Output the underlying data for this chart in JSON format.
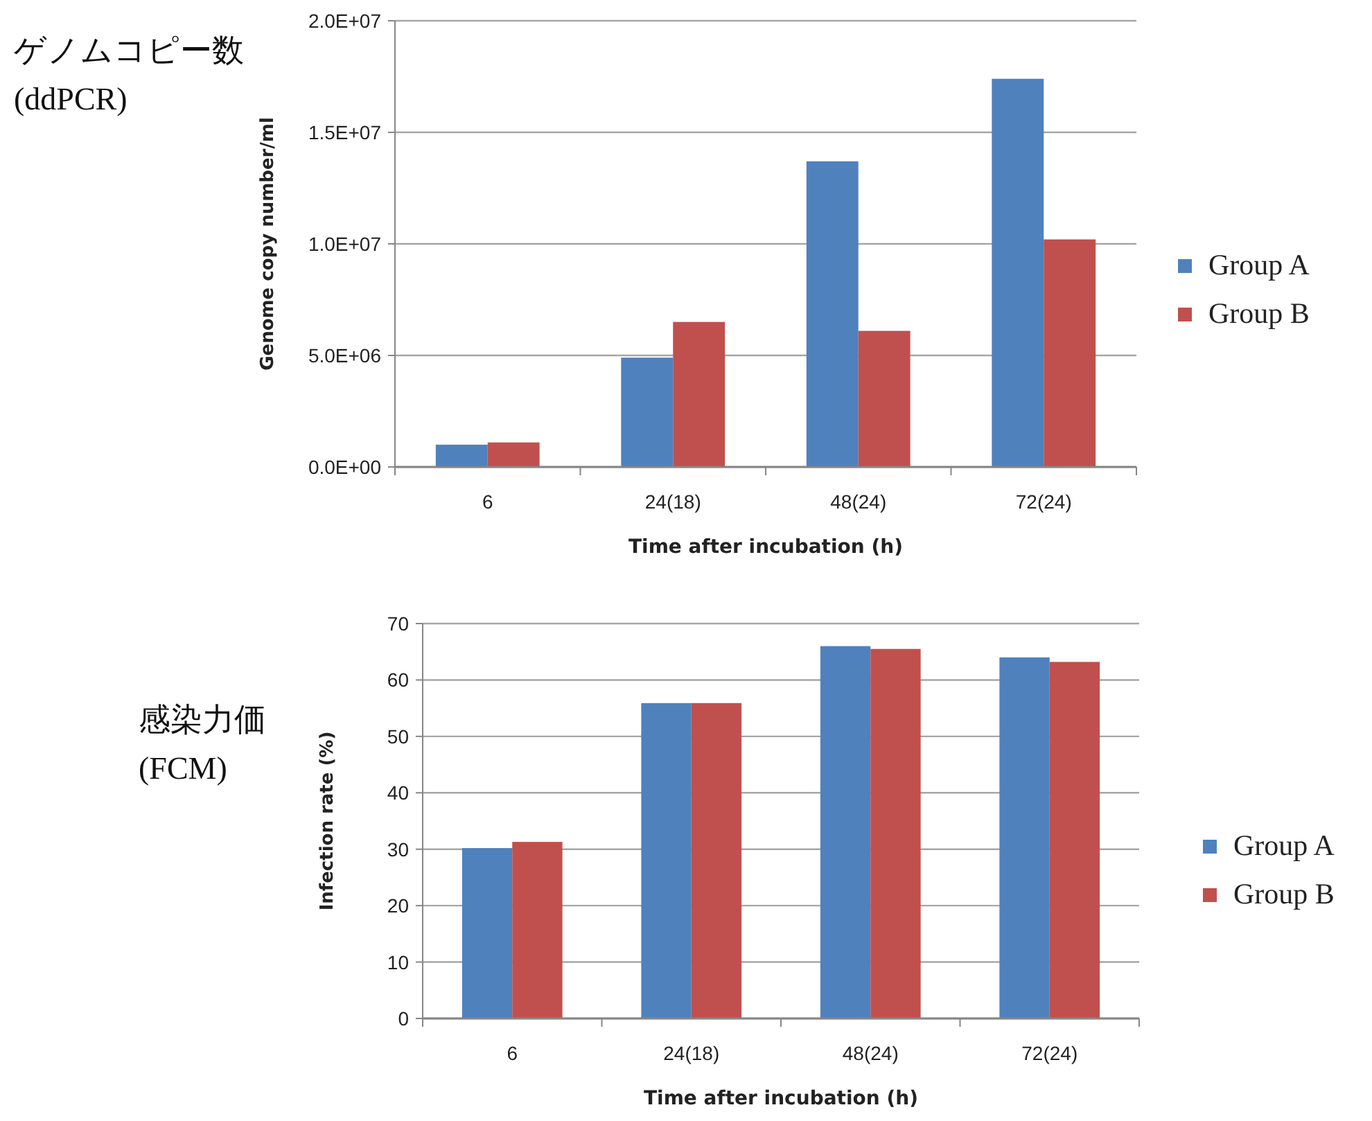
{
  "chart_data": [
    {
      "type": "bar",
      "title": "ゲノムコピー数",
      "subtitle": "(ddPCR)",
      "xlabel": "Time after incubation (h)",
      "ylabel": "Genome copy number/ml",
      "categories": [
        "6",
        "24(18)",
        "48(24)",
        "72(24)"
      ],
      "series": [
        {
          "name": "Group A",
          "color": "#4f81bd",
          "values": [
            1000000,
            4900000,
            13700000,
            17400000
          ]
        },
        {
          "name": "Group B",
          "color": "#c0504d",
          "values": [
            1100000,
            6500000,
            6100000,
            10200000
          ]
        }
      ],
      "ylim": [
        0,
        20000000
      ],
      "yticks": [
        {
          "value": 0,
          "label": "0.0E+00"
        },
        {
          "value": 5000000,
          "label": "5.0E+06"
        },
        {
          "value": 10000000,
          "label": "1.0E+07"
        },
        {
          "value": 15000000,
          "label": "1.5E+07"
        },
        {
          "value": 20000000,
          "label": "2.0E+07"
        }
      ],
      "grid": "y",
      "legend": "right"
    },
    {
      "type": "bar",
      "title": "感染力価",
      "subtitle": "(FCM)",
      "xlabel": "Time after incubation (h)",
      "ylabel": "Infection rate (%)",
      "categories": [
        "6",
        "24(18)",
        "48(24)",
        "72(24)"
      ],
      "series": [
        {
          "name": "Group A",
          "color": "#4f81bd",
          "values": [
            30.2,
            55.9,
            66.0,
            64.0
          ]
        },
        {
          "name": "Group B",
          "color": "#c0504d",
          "values": [
            31.3,
            55.9,
            65.5,
            63.2
          ]
        }
      ],
      "ylim": [
        0,
        70
      ],
      "yticks": [
        0,
        10,
        20,
        30,
        40,
        50,
        60,
        70
      ],
      "grid": "y",
      "legend": "right"
    }
  ]
}
